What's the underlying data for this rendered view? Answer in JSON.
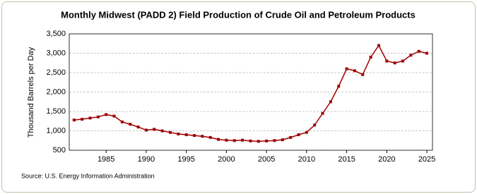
{
  "chart_data": {
    "type": "line",
    "title": "Monthly Midwest (PADD 2) Field Production of Crude Oil and Petroleum Products",
    "y_label": "Thousand Barrels per Day",
    "source": "Source: U.S. Energy Information Administration",
    "x": [
      1981,
      1982,
      1983,
      1984,
      1985,
      1986,
      1987,
      1988,
      1989,
      1990,
      1991,
      1992,
      1993,
      1994,
      1995,
      1996,
      1997,
      1998,
      1999,
      2000,
      2001,
      2002,
      2003,
      2004,
      2005,
      2006,
      2007,
      2008,
      2009,
      2010,
      2011,
      2012,
      2013,
      2014,
      2015,
      2016,
      2017,
      2018,
      2019,
      2020,
      2021,
      2022,
      2023,
      2024,
      2025
    ],
    "series": [
      {
        "name": "Midwest (PADD 2) Field Production",
        "color": "#a00000",
        "values": [
          1280,
          1300,
          1330,
          1360,
          1420,
          1380,
          1230,
          1170,
          1100,
          1020,
          1040,
          1000,
          960,
          920,
          900,
          880,
          860,
          830,
          780,
          760,
          750,
          760,
          740,
          730,
          740,
          750,
          770,
          830,
          900,
          960,
          1150,
          1450,
          1750,
          2150,
          2600,
          2550,
          2450,
          2900,
          3200,
          2800,
          2750,
          2800,
          2950,
          3050,
          3000
        ]
      }
    ],
    "xlim": [
      1980.4,
      2025.7
    ],
    "xticks": [
      1985,
      1990,
      1995,
      2000,
      2005,
      2010,
      2015,
      2020,
      2025
    ],
    "ylim": [
      500,
      3500
    ],
    "yticks": [
      500,
      {
        "value": 1000,
        "label": "1,000"
      },
      {
        "value": 1500,
        "label": "1,500"
      },
      {
        "value": 2000,
        "label": "2,000"
      },
      {
        "value": 2500,
        "label": "2,500"
      },
      {
        "value": 3000,
        "label": "3,000"
      },
      {
        "value": 3500,
        "label": "3,500"
      }
    ],
    "grid": true
  }
}
